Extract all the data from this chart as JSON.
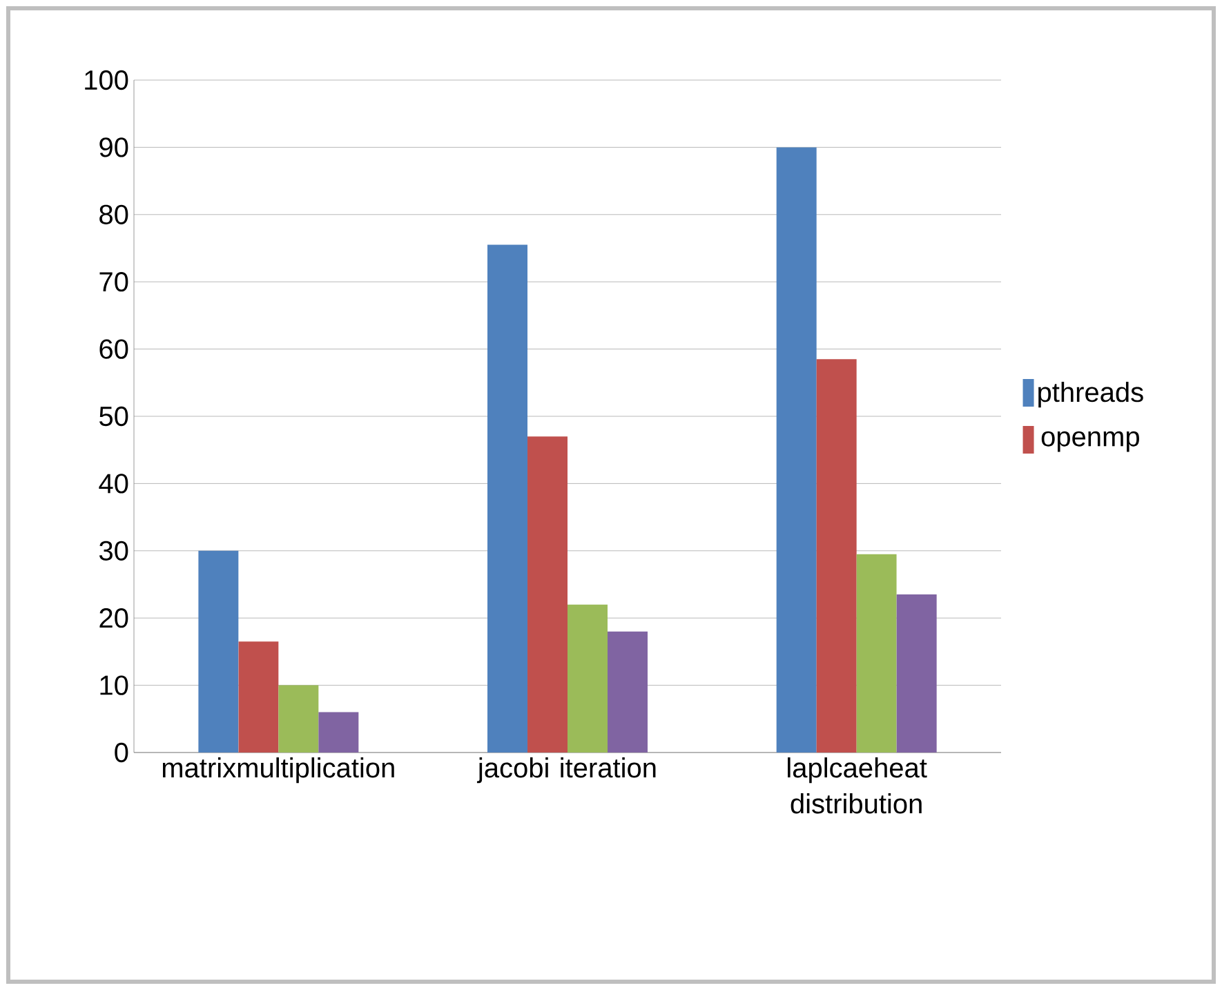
{
  "chart_data": {
    "type": "bar",
    "categories": [
      "matrixmultiplication",
      "jacobi iteration",
      "laplcaeheat distribution"
    ],
    "series": [
      {
        "name": "pthreads",
        "color": "#4f81bd",
        "values": [
          30,
          75.5,
          90
        ]
      },
      {
        "name": "openmp",
        "color": "#c0504d",
        "values": [
          16.5,
          47,
          58.5
        ]
      },
      {
        "color": "#9bbb59",
        "values": [
          10,
          22,
          29.5
        ]
      },
      {
        "color": "#8064a2",
        "values": [
          6,
          18,
          23.5
        ]
      }
    ],
    "ylim": [
      0,
      100
    ],
    "yticks": [
      0,
      10,
      20,
      30,
      40,
      50,
      60,
      70,
      80,
      90,
      100
    ],
    "grid": "y",
    "legend": "right"
  }
}
